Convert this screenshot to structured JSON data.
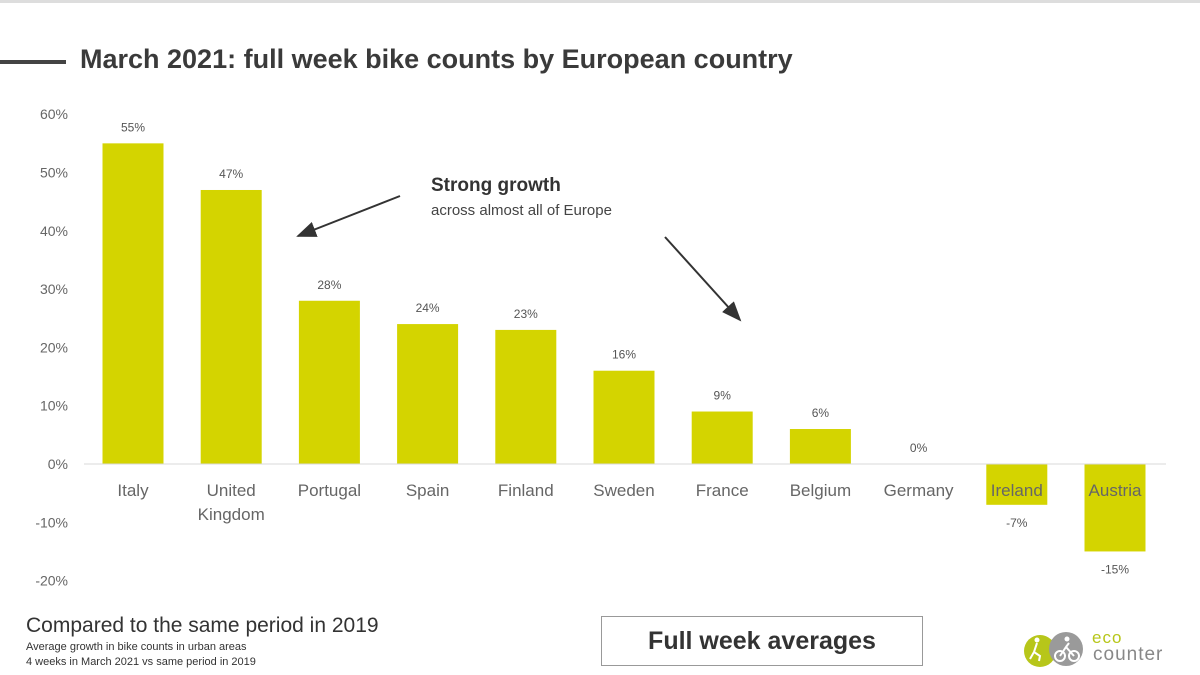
{
  "page": {
    "title": "March 2021: full week bike counts by European country",
    "footer": {
      "headline": "Compared to the same period in 2019",
      "line1": "Average growth in bike counts in urban areas",
      "line2": "4 weeks in March 2021 vs same period in 2019"
    },
    "badge": "Full week averages",
    "logo": {
      "line1": "eco",
      "line2": "counter",
      "icon": "eco-counter-logo-icon"
    }
  },
  "chart_data": {
    "type": "bar",
    "categories": [
      "Italy",
      "United Kingdom",
      "Portugal",
      "Spain",
      "Finland",
      "Sweden",
      "France",
      "Belgium",
      "Germany",
      "Ireland",
      "Austria"
    ],
    "category_lines": [
      [
        "Italy"
      ],
      [
        "United",
        "Kingdom"
      ],
      [
        "Portugal"
      ],
      [
        "Spain"
      ],
      [
        "Finland"
      ],
      [
        "Sweden"
      ],
      [
        "France"
      ],
      [
        "Belgium"
      ],
      [
        "Germany"
      ],
      [
        "Ireland"
      ],
      [
        "Austria"
      ]
    ],
    "values": [
      55,
      47,
      28,
      24,
      23,
      16,
      9,
      6,
      0,
      -7,
      -15
    ],
    "value_labels": [
      "55%",
      "47%",
      "28%",
      "24%",
      "23%",
      "16%",
      "9%",
      "6%",
      "0%",
      "-7%",
      "-15%"
    ],
    "yticks": [
      60,
      50,
      40,
      30,
      20,
      10,
      0,
      -10,
      -20
    ],
    "ytick_labels": [
      "60%",
      "50%",
      "40%",
      "30%",
      "20%",
      "10%",
      "0%",
      "-10%",
      "-20%"
    ],
    "ylim": [
      -20,
      60
    ],
    "grid": false,
    "colors": {
      "bar": "#d4d400",
      "axis": "#d9d9d9",
      "arrow": "#333333"
    },
    "annotation": {
      "title": "Strong growth",
      "subtitle": "across almost all of Europe"
    },
    "title": "March 2021: full week bike counts by European country",
    "xlabel": "",
    "ylabel": ""
  }
}
